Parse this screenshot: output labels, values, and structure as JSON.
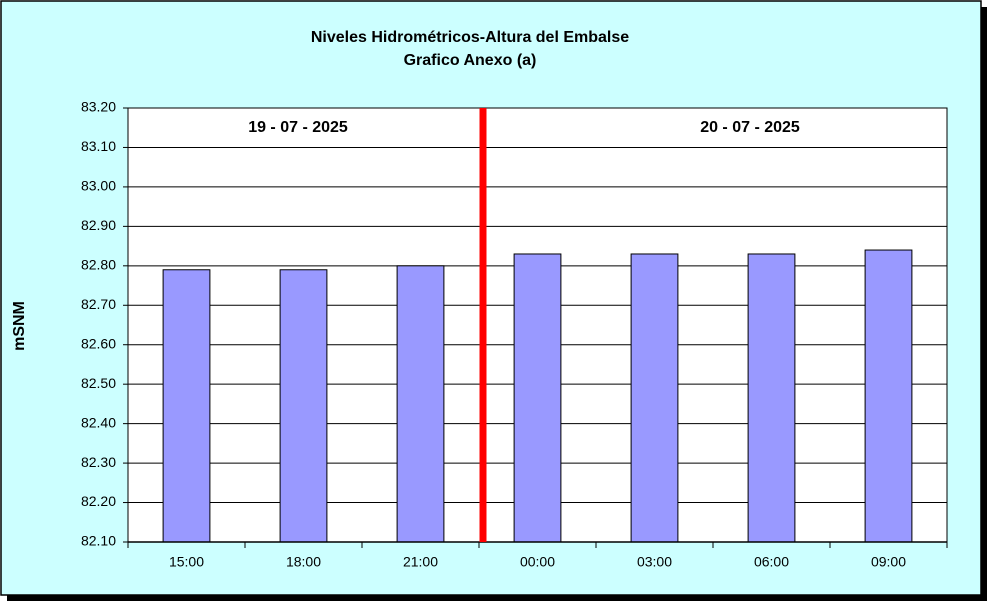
{
  "chart_data": {
    "type": "bar",
    "title": "Niveles Hidrométricos-Altura del Embalse",
    "subtitle": "Grafico Anexo (a)",
    "y_label": "mSNM",
    "annotations": [
      "19 - 07 - 2025",
      "20 - 07 - 2025"
    ],
    "categories": [
      "15:00",
      "18:00",
      "21:00",
      "00:00",
      "03:00",
      "06:00",
      "09:00"
    ],
    "values": [
      82.79,
      82.79,
      82.8,
      82.83,
      82.83,
      82.83,
      82.84
    ],
    "color": "#9999ff",
    "ylim": [
      82.1,
      83.2
    ],
    "yticks": [
      {
        "value": 82.1,
        "label": "82.10"
      },
      {
        "value": 82.2,
        "label": "82.20"
      },
      {
        "value": 82.3,
        "label": "82.30"
      },
      {
        "value": 82.4,
        "label": "82.40"
      },
      {
        "value": 82.5,
        "label": "82.50"
      },
      {
        "value": 82.6,
        "label": "82.60"
      },
      {
        "value": 82.7,
        "label": "82.70"
      },
      {
        "value": 82.8,
        "label": "82.80"
      },
      {
        "value": 82.9,
        "label": "82.90"
      },
      {
        "value": 83.0,
        "label": "83.00"
      },
      {
        "value": 83.1,
        "label": "83.10"
      },
      {
        "value": 83.2,
        "label": "83.20"
      }
    ],
    "grid": true,
    "divider_color": "#ff0000"
  }
}
